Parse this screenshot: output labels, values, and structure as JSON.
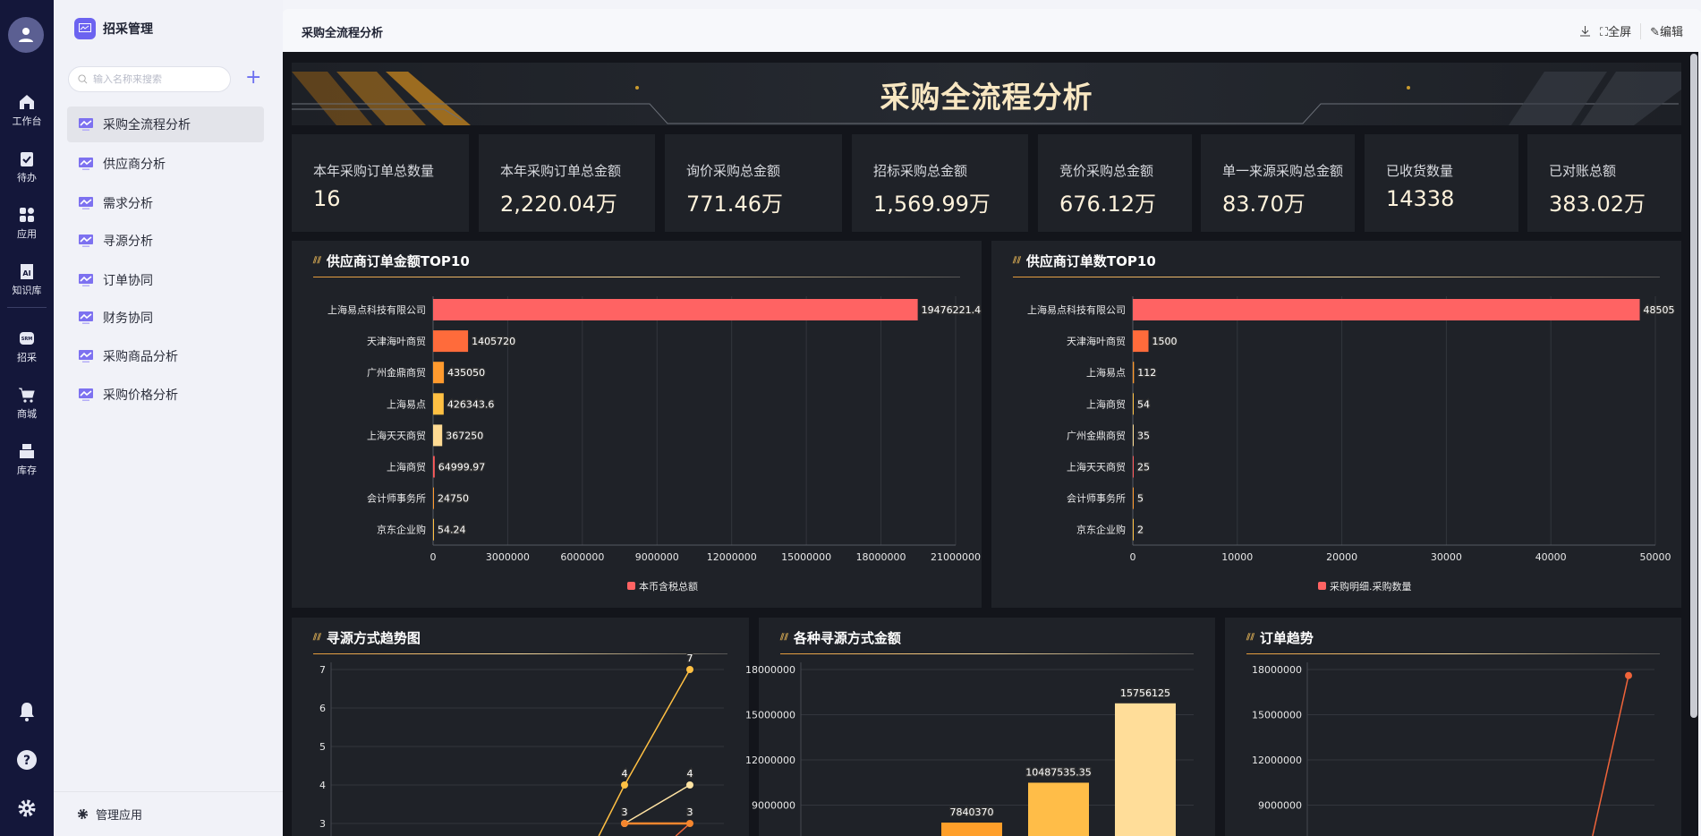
{
  "rail": {
    "items": [
      {
        "label": "工作台",
        "icon": "home-icon"
      },
      {
        "label": "待办",
        "icon": "clipboard-check-icon"
      },
      {
        "label": "应用",
        "icon": "apps-icon"
      },
      {
        "label": "知识库",
        "icon": "ai-book-icon"
      },
      {
        "label": "招采",
        "icon": "srm-icon"
      },
      {
        "label": "商城",
        "icon": "cart-icon"
      },
      {
        "label": "库存",
        "icon": "inventory-icon"
      }
    ],
    "bottom": [
      "bell-icon",
      "help-icon",
      "gear-icon"
    ]
  },
  "sidebar": {
    "title": "招采管理",
    "search_placeholder": "输入名称来搜索",
    "items": [
      {
        "label": "采购全流程分析",
        "active": true
      },
      {
        "label": "供应商分析"
      },
      {
        "label": "需求分析"
      },
      {
        "label": "寻源分析"
      },
      {
        "label": "订单协同"
      },
      {
        "label": "财务协同"
      },
      {
        "label": "采购商品分析"
      },
      {
        "label": "采购价格分析"
      }
    ],
    "footer": "管理应用"
  },
  "header": {
    "title": "采购全流程分析",
    "fullscreen": "全屏",
    "edit": "编辑"
  },
  "dashboard": {
    "title": "采购全流程分析",
    "kpis": [
      {
        "label": "本年采购订单总数量",
        "value": "16"
      },
      {
        "label": "本年采购订单总金额",
        "value": "2,220.04万"
      },
      {
        "label": "询价采购总金额",
        "value": "771.46万"
      },
      {
        "label": "招标采购总金额",
        "value": "1,569.99万"
      },
      {
        "label": "竞价采购总金额",
        "value": "676.12万"
      },
      {
        "label": "单一来源采购总金额",
        "value": "83.70万"
      },
      {
        "label": "已收货数量",
        "value": "14338"
      },
      {
        "label": "已对账总额",
        "value": "383.02万"
      }
    ]
  },
  "colors": {
    "accent": "#6c63f0",
    "bars": [
      "#ff6363",
      "#ff6b3b",
      "#ff9a2e",
      "#ffc043",
      "#ffdb93",
      "#ff5b5b",
      "#ff9a2e",
      "#ffc043"
    ],
    "title_gold": "#f8e7c2"
  },
  "chart_data": [
    {
      "type": "bar",
      "orientation": "horizontal",
      "title": "供应商订单金额TOP10",
      "categories": [
        "上海易点科技有限公司",
        "天津海叶商贸",
        "广州金鼎商贸",
        "上海易点",
        "上海天天商贸",
        "上海商贸",
        "会计师事务所",
        "京东企业购"
      ],
      "values": [
        19476221.4,
        1405720,
        435050,
        426343.6,
        367250,
        64999.97,
        24750,
        54.24
      ],
      "labels": [
        "19476221.4",
        "1405720",
        "435050",
        "426343.6",
        "367250",
        "64999.97",
        "24750",
        "54.24"
      ],
      "xlim": [
        0,
        21000000
      ],
      "ticks": [
        "0",
        "3000000",
        "6000000",
        "9000000",
        "12000000",
        "15000000",
        "18000000",
        "21000000"
      ],
      "legend": "本币含税总额",
      "grid": true,
      "legend_position": "bottom"
    },
    {
      "type": "bar",
      "orientation": "horizontal",
      "title": "供应商订单数TOP10",
      "categories": [
        "上海易点科技有限公司",
        "天津海叶商贸",
        "上海易点",
        "上海商贸",
        "广州金鼎商贸",
        "上海天天商贸",
        "会计师事务所",
        "京东企业购"
      ],
      "values": [
        48505,
        1500,
        112,
        54,
        35,
        25,
        5,
        2
      ],
      "labels": [
        "48505",
        "1500",
        "112",
        "54",
        "35",
        "25",
        "5",
        "2"
      ],
      "xlim": [
        0,
        50000
      ],
      "ticks": [
        "0",
        "10000",
        "20000",
        "30000",
        "40000",
        "50000"
      ],
      "legend": "采购明细.采购数量",
      "grid": true,
      "legend_position": "bottom"
    },
    {
      "type": "line",
      "title": "寻源方式趋势图",
      "yticks": [
        "7",
        "6",
        "5",
        "4",
        "3"
      ],
      "series": [
        {
          "color": "#ffc043",
          "values": [
            4,
            7
          ]
        },
        {
          "color": "#ffe3a3",
          "values": [
            3,
            4
          ]
        },
        {
          "color": "#f5862e",
          "values": [
            3,
            3
          ]
        }
      ],
      "grid": true
    },
    {
      "type": "bar",
      "title": "各种寻源方式金额",
      "yticks": [
        "18000000",
        "15000000",
        "12000000",
        "9000000"
      ],
      "values": [
        7840370,
        10487535.35,
        15756125
      ],
      "labels": [
        "7840370",
        "10487535.35",
        "15756125"
      ],
      "colors": [
        "#ff9f2a",
        "#ffbd48",
        "#ffdd99"
      ],
      "grid": true
    },
    {
      "type": "line",
      "title": "订单趋势",
      "yticks": [
        "18000000",
        "15000000",
        "12000000",
        "9000000"
      ],
      "series": [
        {
          "color": "#f0643a",
          "values": [
            17600000
          ]
        }
      ],
      "grid": true
    }
  ]
}
